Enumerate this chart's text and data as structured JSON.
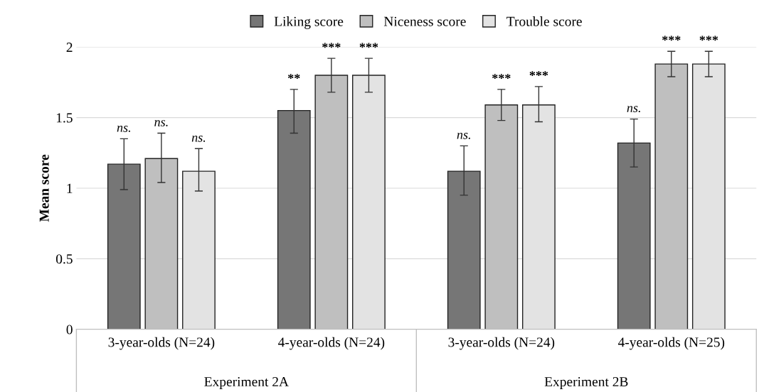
{
  "chart_data": {
    "type": "bar",
    "ylabel": "Mean score",
    "categories": [
      "3-year-olds (N=24)",
      "4-year-olds (N=24)",
      "3-year-olds (N=24)",
      "4-year-olds (N=25)"
    ],
    "series": [
      {
        "name": "Liking score",
        "color": "#767676",
        "values": [
          1.17,
          1.55,
          1.12,
          1.32
        ],
        "errors": [
          [
            0.99,
            1.35
          ],
          [
            1.39,
            1.7
          ],
          [
            0.95,
            1.3
          ],
          [
            1.15,
            1.49
          ]
        ],
        "value_labels": [
          "ns.",
          "**",
          "ns.",
          "ns."
        ]
      },
      {
        "name": "Niceness score",
        "color": "#bfbfbf",
        "values": [
          1.21,
          1.8,
          1.59,
          1.88
        ],
        "errors": [
          [
            1.04,
            1.39
          ],
          [
            1.68,
            1.92
          ],
          [
            1.48,
            1.7
          ],
          [
            1.79,
            1.97
          ]
        ],
        "value_labels": [
          "ns.",
          "***",
          "***",
          "***"
        ]
      },
      {
        "name": "Trouble score",
        "color": "#e3e3e3",
        "values": [
          1.12,
          1.8,
          1.59,
          1.88
        ],
        "errors": [
          [
            0.98,
            1.28
          ],
          [
            1.68,
            1.92
          ],
          [
            1.47,
            1.72
          ],
          [
            1.79,
            1.97
          ]
        ],
        "value_labels": [
          "ns.",
          "***",
          "***",
          "***"
        ]
      }
    ],
    "annotations": [
      "Experiment 2A",
      "Experiment 2B"
    ],
    "ylim": [
      0,
      2
    ],
    "yticks": [
      0,
      0.5,
      1,
      1.5,
      2
    ],
    "grid": "y",
    "legend": "top"
  }
}
